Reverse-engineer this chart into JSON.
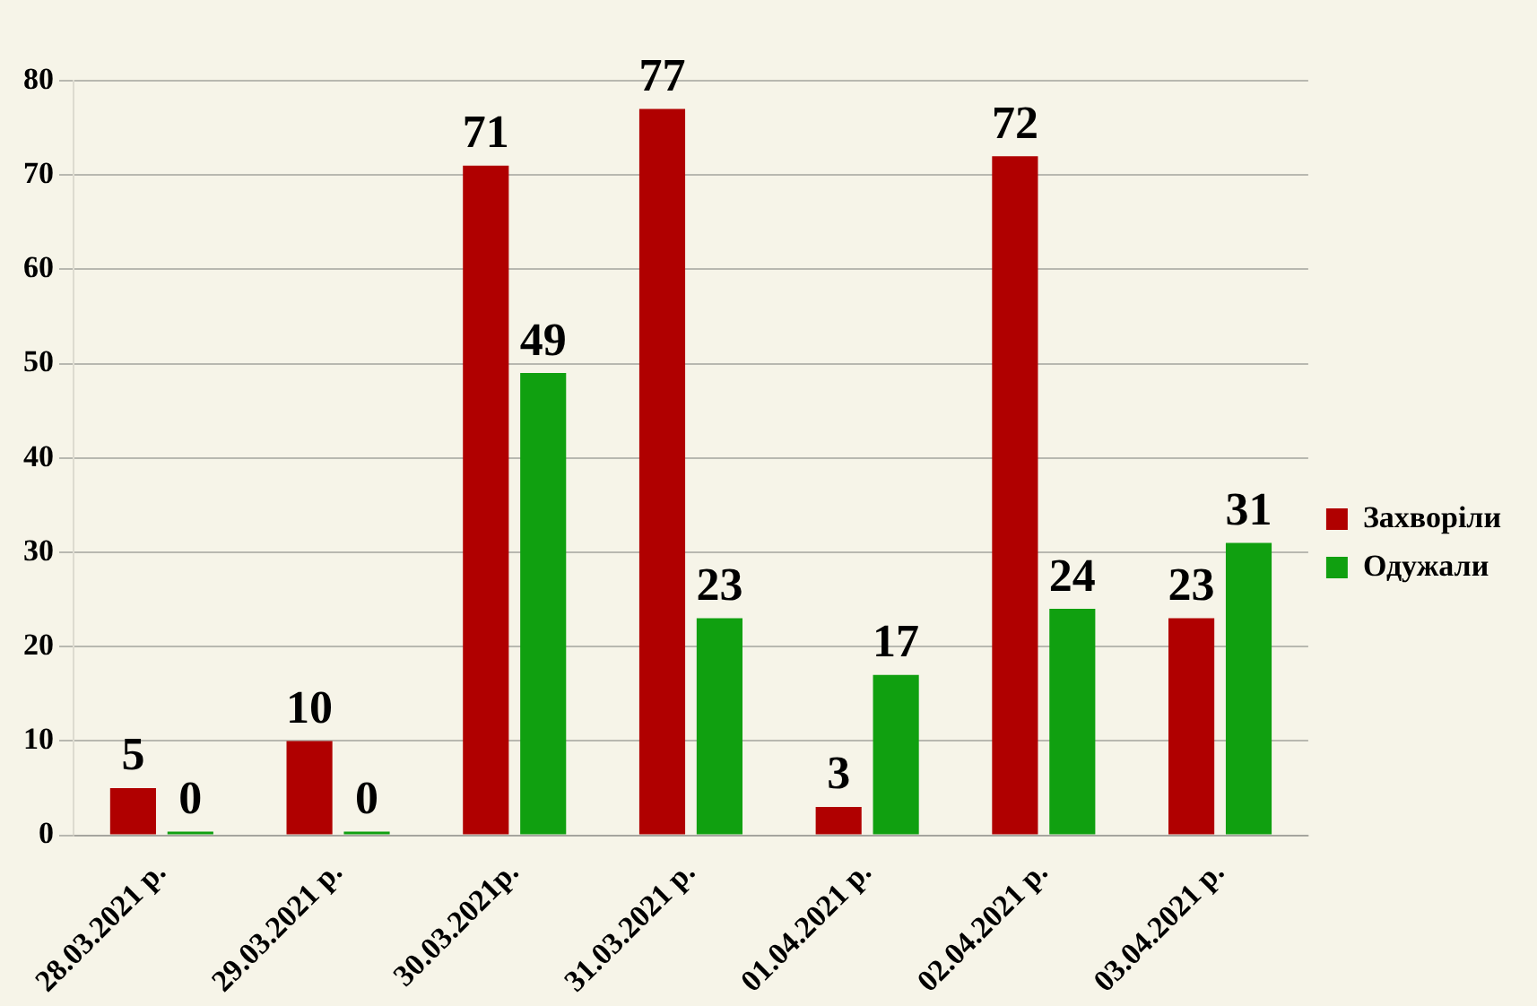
{
  "chart_data": {
    "type": "bar",
    "categories": [
      "28.03.2021 р.",
      "29.03.2021 р.",
      "30.03.2021р.",
      "31.03.2021 р.",
      "01.04.2021 р.",
      "02.04.2021 р.",
      "03.04.2021 р."
    ],
    "series": [
      {
        "name": "Захворіли",
        "color": "#b00000",
        "values": [
          5,
          10,
          71,
          77,
          3,
          72,
          23
        ]
      },
      {
        "name": "Одужали",
        "color": "#10a010",
        "values": [
          0,
          0,
          49,
          23,
          17,
          24,
          31
        ]
      }
    ],
    "ylim": [
      0,
      80
    ],
    "yticks": [
      0,
      10,
      20,
      30,
      40,
      50,
      60,
      70,
      80
    ],
    "grid": "y",
    "legend": "right",
    "data_labels": true
  }
}
